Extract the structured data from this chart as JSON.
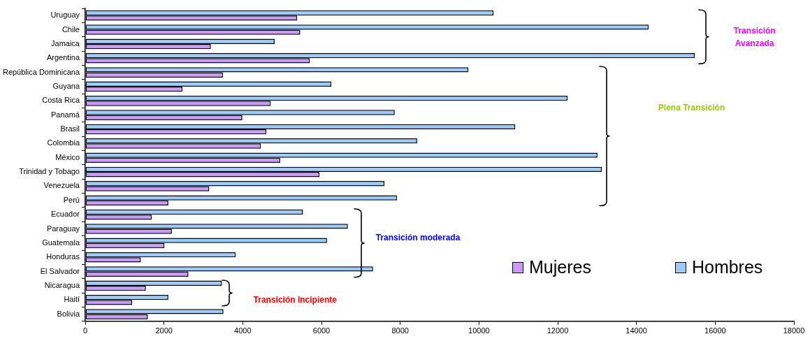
{
  "chart_data": {
    "type": "bar",
    "orientation": "horizontal",
    "categories": [
      "Uruguay",
      "Chile",
      "Jamaica",
      "Argentina",
      "República Dominicana",
      "Guyana",
      "Costa Rica",
      "Panamá",
      "Brasil",
      "Colombia",
      "México",
      "Trinidad y Tobago",
      "Venezuela",
      "Perú",
      "Ecuador",
      "Paraguay",
      "Guatemala",
      "Honduras",
      "El Salvador",
      "Nicaragua",
      "Haití",
      "Bolivia"
    ],
    "series": [
      {
        "name": "Hombres",
        "color": "#99ccff",
        "values": [
          10370,
          14310,
          4810,
          15480,
          9730,
          6250,
          12250,
          7860,
          10920,
          8430,
          13010,
          13120,
          7600,
          7920,
          5530,
          6670,
          6140,
          3820,
          7310,
          3470,
          2110,
          3510
        ]
      },
      {
        "name": "Mujeres",
        "color": "#cc99ff",
        "values": [
          5380,
          5460,
          3190,
          5700,
          3500,
          2470,
          4710,
          3990,
          4600,
          4460,
          4950,
          5950,
          3150,
          2110,
          1690,
          2200,
          2010,
          1410,
          2620,
          1540,
          1190,
          1590
        ]
      }
    ],
    "xlim": [
      0,
      18000
    ],
    "xticks": [
      0,
      2000,
      4000,
      6000,
      8000,
      10000,
      12000,
      14000,
      16000,
      18000
    ],
    "legend": "bottom right",
    "annotations": [
      "Transición Avanzada",
      "Plena Transición",
      "Transición moderada",
      "Transición Incipiente"
    ]
  }
}
